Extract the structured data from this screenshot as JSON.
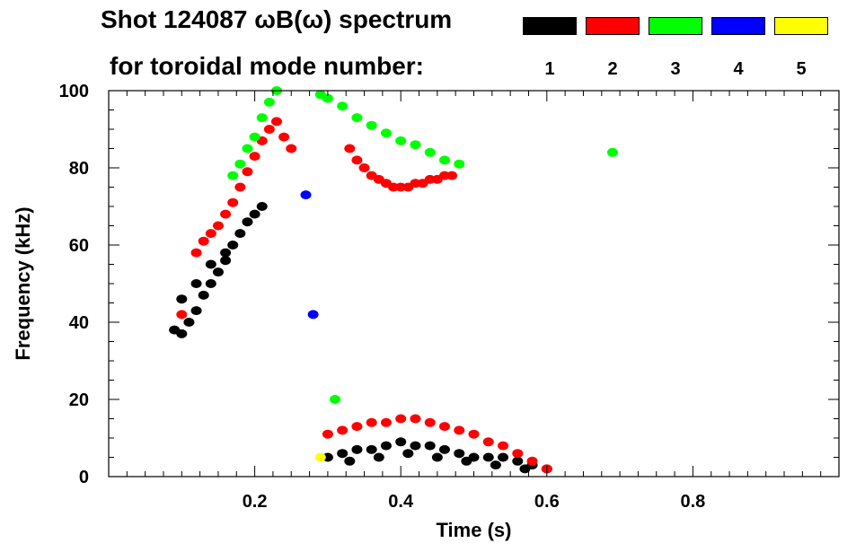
{
  "chart_data": {
    "type": "heatmap",
    "title": "Shot 124087 ωB(ω) spectrum",
    "subtitle": "for toroidal mode number:",
    "xlabel": "Time (s)",
    "ylabel": "Frequency (kHz)",
    "xlim": [
      0.0,
      1.0
    ],
    "ylim": [
      0,
      100
    ],
    "xticks": [
      0.2,
      0.4,
      0.6,
      0.8
    ],
    "xtick_labels": [
      "0.2",
      "0.4",
      "0.6",
      "0.8"
    ],
    "yticks": [
      0,
      20,
      40,
      60,
      80,
      100
    ],
    "ytick_labels": [
      "0",
      "20",
      "40",
      "60",
      "80",
      "100"
    ],
    "legend_position": "top-right",
    "grid": false,
    "legend": [
      {
        "label": "1",
        "color": "#000000"
      },
      {
        "label": "2",
        "color": "#ff0000"
      },
      {
        "label": "3",
        "color": "#00ff00"
      },
      {
        "label": "4",
        "color": "#0000ff"
      },
      {
        "label": "5",
        "color": "#ffff00"
      }
    ],
    "series": [
      {
        "name": "1",
        "color": "#000000",
        "points": [
          [
            0.09,
            38
          ],
          [
            0.1,
            37
          ],
          [
            0.11,
            40
          ],
          [
            0.12,
            43
          ],
          [
            0.13,
            47
          ],
          [
            0.14,
            50
          ],
          [
            0.15,
            53
          ],
          [
            0.16,
            56
          ],
          [
            0.17,
            60
          ],
          [
            0.18,
            63
          ],
          [
            0.19,
            66
          ],
          [
            0.2,
            68
          ],
          [
            0.21,
            70
          ],
          [
            0.1,
            46
          ],
          [
            0.12,
            50
          ],
          [
            0.14,
            55
          ],
          [
            0.16,
            58
          ],
          [
            0.3,
            5
          ],
          [
            0.32,
            6
          ],
          [
            0.34,
            7
          ],
          [
            0.36,
            7
          ],
          [
            0.38,
            8
          ],
          [
            0.4,
            9
          ],
          [
            0.42,
            8
          ],
          [
            0.44,
            8
          ],
          [
            0.46,
            7
          ],
          [
            0.48,
            6
          ],
          [
            0.5,
            5
          ],
          [
            0.52,
            5
          ],
          [
            0.54,
            5
          ],
          [
            0.56,
            4
          ],
          [
            0.58,
            3
          ],
          [
            0.6,
            2
          ],
          [
            0.33,
            4
          ],
          [
            0.37,
            5
          ],
          [
            0.41,
            6
          ],
          [
            0.45,
            5
          ],
          [
            0.49,
            4
          ],
          [
            0.53,
            3
          ],
          [
            0.57,
            2
          ]
        ]
      },
      {
        "name": "2",
        "color": "#ff0000",
        "points": [
          [
            0.1,
            42
          ],
          [
            0.12,
            58
          ],
          [
            0.13,
            61
          ],
          [
            0.14,
            63
          ],
          [
            0.15,
            65
          ],
          [
            0.16,
            68
          ],
          [
            0.17,
            71
          ],
          [
            0.18,
            75
          ],
          [
            0.19,
            79
          ],
          [
            0.2,
            83
          ],
          [
            0.21,
            87
          ],
          [
            0.22,
            90
          ],
          [
            0.23,
            92
          ],
          [
            0.24,
            88
          ],
          [
            0.25,
            85
          ],
          [
            0.33,
            85
          ],
          [
            0.34,
            82
          ],
          [
            0.35,
            80
          ],
          [
            0.36,
            78
          ],
          [
            0.37,
            77
          ],
          [
            0.38,
            76
          ],
          [
            0.39,
            75
          ],
          [
            0.4,
            75
          ],
          [
            0.41,
            75
          ],
          [
            0.42,
            76
          ],
          [
            0.43,
            76
          ],
          [
            0.44,
            77
          ],
          [
            0.45,
            77
          ],
          [
            0.46,
            78
          ],
          [
            0.47,
            78
          ],
          [
            0.3,
            11
          ],
          [
            0.32,
            12
          ],
          [
            0.34,
            13
          ],
          [
            0.36,
            14
          ],
          [
            0.38,
            14
          ],
          [
            0.4,
            15
          ],
          [
            0.42,
            15
          ],
          [
            0.44,
            14
          ],
          [
            0.46,
            13
          ],
          [
            0.48,
            12
          ],
          [
            0.5,
            11
          ],
          [
            0.52,
            9
          ],
          [
            0.54,
            8
          ],
          [
            0.56,
            6
          ],
          [
            0.58,
            4
          ],
          [
            0.6,
            2
          ]
        ]
      },
      {
        "name": "3",
        "color": "#00ff00",
        "points": [
          [
            0.17,
            78
          ],
          [
            0.18,
            81
          ],
          [
            0.19,
            85
          ],
          [
            0.2,
            88
          ],
          [
            0.21,
            93
          ],
          [
            0.22,
            97
          ],
          [
            0.23,
            100
          ],
          [
            0.29,
            99
          ],
          [
            0.3,
            98
          ],
          [
            0.32,
            96
          ],
          [
            0.34,
            93
          ],
          [
            0.36,
            91
          ],
          [
            0.38,
            89
          ],
          [
            0.4,
            87
          ],
          [
            0.42,
            86
          ],
          [
            0.44,
            84
          ],
          [
            0.46,
            82
          ],
          [
            0.48,
            81
          ],
          [
            0.31,
            20
          ],
          [
            0.69,
            84
          ]
        ]
      },
      {
        "name": "4",
        "color": "#0000ff",
        "points": [
          [
            0.27,
            73
          ],
          [
            0.28,
            42
          ]
        ]
      },
      {
        "name": "5",
        "color": "#ffff00",
        "points": [
          [
            0.29,
            5
          ]
        ]
      }
    ]
  }
}
